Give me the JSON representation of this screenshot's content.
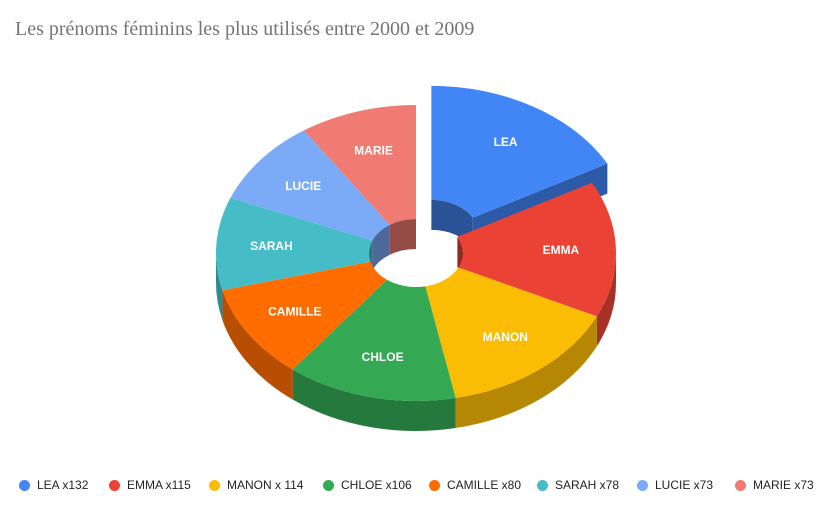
{
  "chart_data": {
    "type": "pie",
    "style": "3d-exploded-donut",
    "title": "Les prénoms féminins les plus utilisés entre 2000 et 2009",
    "slices": [
      {
        "label": "LEA",
        "legend": "LEA x132",
        "value": 132,
        "color": "#4285F4",
        "exploded": true
      },
      {
        "label": "EMMA",
        "legend": "EMMA x115",
        "value": 115,
        "color": "#EA4335",
        "exploded": false
      },
      {
        "label": "MANON",
        "legend": "MANON x 114",
        "value": 114,
        "color": "#FBBC04",
        "exploded": false
      },
      {
        "label": "CHLOE",
        "legend": "CHLOE x106",
        "value": 106,
        "color": "#34A853",
        "exploded": false
      },
      {
        "label": "CAMILLE",
        "legend": "CAMILLE x80",
        "value": 80,
        "color": "#FF6D01",
        "exploded": false
      },
      {
        "label": "SARAH",
        "legend": "SARAH x78",
        "value": 78,
        "color": "#46BDC6",
        "exploded": false
      },
      {
        "label": "LUCIE",
        "legend": "LUCIE x73",
        "value": 73,
        "color": "#7BAAF7",
        "exploded": false
      },
      {
        "label": "MARIE",
        "legend": "MARIE x73",
        "value": 73,
        "color": "#F07B72",
        "exploded": false
      }
    ],
    "legend_position": "bottom"
  }
}
